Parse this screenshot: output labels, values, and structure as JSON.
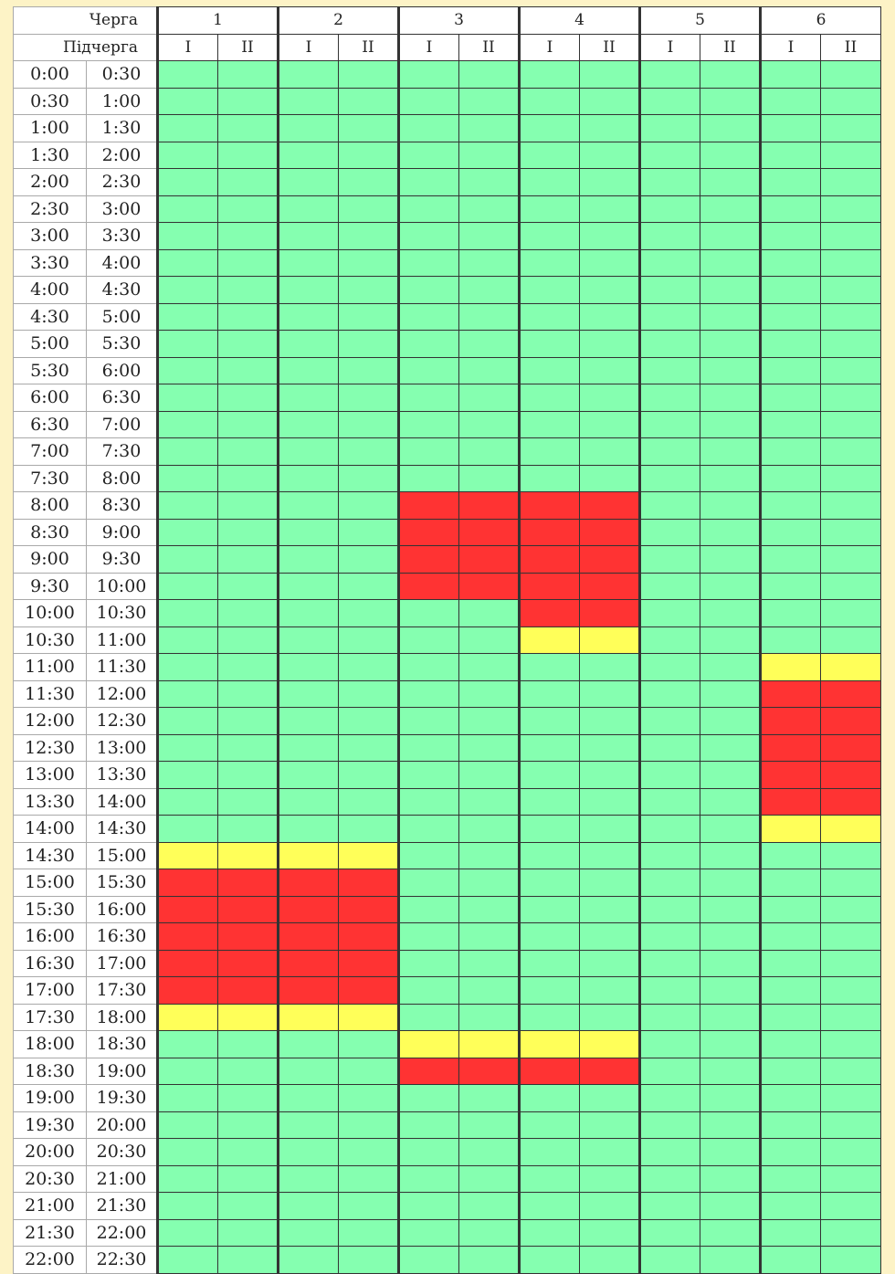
{
  "header": {
    "queue_label": "Черга",
    "subqueue_label": "Підчерга",
    "queues": [
      "1",
      "2",
      "3",
      "4",
      "5",
      "6"
    ],
    "subqueues": [
      "I",
      "II"
    ]
  },
  "legend_colors": {
    "on": "#85ffb0",
    "maybe": "#ffff59",
    "off": "#ff3333"
  },
  "rows": [
    {
      "from": "0:00",
      "to": "0:30",
      "cells": [
        "on",
        "on",
        "on",
        "on",
        "on",
        "on",
        "on",
        "on",
        "on",
        "on",
        "on",
        "on"
      ]
    },
    {
      "from": "0:30",
      "to": "1:00",
      "cells": [
        "on",
        "on",
        "on",
        "on",
        "on",
        "on",
        "on",
        "on",
        "on",
        "on",
        "on",
        "on"
      ]
    },
    {
      "from": "1:00",
      "to": "1:30",
      "cells": [
        "on",
        "on",
        "on",
        "on",
        "on",
        "on",
        "on",
        "on",
        "on",
        "on",
        "on",
        "on"
      ]
    },
    {
      "from": "1:30",
      "to": "2:00",
      "cells": [
        "on",
        "on",
        "on",
        "on",
        "on",
        "on",
        "on",
        "on",
        "on",
        "on",
        "on",
        "on"
      ]
    },
    {
      "from": "2:00",
      "to": "2:30",
      "cells": [
        "on",
        "on",
        "on",
        "on",
        "on",
        "on",
        "on",
        "on",
        "on",
        "on",
        "on",
        "on"
      ]
    },
    {
      "from": "2:30",
      "to": "3:00",
      "cells": [
        "on",
        "on",
        "on",
        "on",
        "on",
        "on",
        "on",
        "on",
        "on",
        "on",
        "on",
        "on"
      ]
    },
    {
      "from": "3:00",
      "to": "3:30",
      "cells": [
        "on",
        "on",
        "on",
        "on",
        "on",
        "on",
        "on",
        "on",
        "on",
        "on",
        "on",
        "on"
      ]
    },
    {
      "from": "3:30",
      "to": "4:00",
      "cells": [
        "on",
        "on",
        "on",
        "on",
        "on",
        "on",
        "on",
        "on",
        "on",
        "on",
        "on",
        "on"
      ]
    },
    {
      "from": "4:00",
      "to": "4:30",
      "cells": [
        "on",
        "on",
        "on",
        "on",
        "on",
        "on",
        "on",
        "on",
        "on",
        "on",
        "on",
        "on"
      ]
    },
    {
      "from": "4:30",
      "to": "5:00",
      "cells": [
        "on",
        "on",
        "on",
        "on",
        "on",
        "on",
        "on",
        "on",
        "on",
        "on",
        "on",
        "on"
      ]
    },
    {
      "from": "5:00",
      "to": "5:30",
      "cells": [
        "on",
        "on",
        "on",
        "on",
        "on",
        "on",
        "on",
        "on",
        "on",
        "on",
        "on",
        "on"
      ]
    },
    {
      "from": "5:30",
      "to": "6:00",
      "cells": [
        "on",
        "on",
        "on",
        "on",
        "on",
        "on",
        "on",
        "on",
        "on",
        "on",
        "on",
        "on"
      ]
    },
    {
      "from": "6:00",
      "to": "6:30",
      "cells": [
        "on",
        "on",
        "on",
        "on",
        "on",
        "on",
        "on",
        "on",
        "on",
        "on",
        "on",
        "on"
      ]
    },
    {
      "from": "6:30",
      "to": "7:00",
      "cells": [
        "on",
        "on",
        "on",
        "on",
        "on",
        "on",
        "on",
        "on",
        "on",
        "on",
        "on",
        "on"
      ]
    },
    {
      "from": "7:00",
      "to": "7:30",
      "cells": [
        "on",
        "on",
        "on",
        "on",
        "on",
        "on",
        "on",
        "on",
        "on",
        "on",
        "on",
        "on"
      ]
    },
    {
      "from": "7:30",
      "to": "8:00",
      "cells": [
        "on",
        "on",
        "on",
        "on",
        "on",
        "on",
        "on",
        "on",
        "on",
        "on",
        "on",
        "on"
      ]
    },
    {
      "from": "8:00",
      "to": "8:30",
      "cells": [
        "on",
        "on",
        "on",
        "on",
        "off",
        "off",
        "off",
        "off",
        "on",
        "on",
        "on",
        "on"
      ]
    },
    {
      "from": "8:30",
      "to": "9:00",
      "cells": [
        "on",
        "on",
        "on",
        "on",
        "off",
        "off",
        "off",
        "off",
        "on",
        "on",
        "on",
        "on"
      ]
    },
    {
      "from": "9:00",
      "to": "9:30",
      "cells": [
        "on",
        "on",
        "on",
        "on",
        "off",
        "off",
        "off",
        "off",
        "on",
        "on",
        "on",
        "on"
      ]
    },
    {
      "from": "9:30",
      "to": "10:00",
      "cells": [
        "on",
        "on",
        "on",
        "on",
        "off",
        "off",
        "off",
        "off",
        "on",
        "on",
        "on",
        "on"
      ]
    },
    {
      "from": "10:00",
      "to": "10:30",
      "cells": [
        "on",
        "on",
        "on",
        "on",
        "on",
        "on",
        "off",
        "off",
        "on",
        "on",
        "on",
        "on"
      ]
    },
    {
      "from": "10:30",
      "to": "11:00",
      "cells": [
        "on",
        "on",
        "on",
        "on",
        "on",
        "on",
        "maybe",
        "maybe",
        "on",
        "on",
        "on",
        "on"
      ]
    },
    {
      "from": "11:00",
      "to": "11:30",
      "cells": [
        "on",
        "on",
        "on",
        "on",
        "on",
        "on",
        "on",
        "on",
        "on",
        "on",
        "maybe",
        "maybe"
      ]
    },
    {
      "from": "11:30",
      "to": "12:00",
      "cells": [
        "on",
        "on",
        "on",
        "on",
        "on",
        "on",
        "on",
        "on",
        "on",
        "on",
        "off",
        "off"
      ]
    },
    {
      "from": "12:00",
      "to": "12:30",
      "cells": [
        "on",
        "on",
        "on",
        "on",
        "on",
        "on",
        "on",
        "on",
        "on",
        "on",
        "off",
        "off"
      ]
    },
    {
      "from": "12:30",
      "to": "13:00",
      "cells": [
        "on",
        "on",
        "on",
        "on",
        "on",
        "on",
        "on",
        "on",
        "on",
        "on",
        "off",
        "off"
      ]
    },
    {
      "from": "13:00",
      "to": "13:30",
      "cells": [
        "on",
        "on",
        "on",
        "on",
        "on",
        "on",
        "on",
        "on",
        "on",
        "on",
        "off",
        "off"
      ]
    },
    {
      "from": "13:30",
      "to": "14:00",
      "cells": [
        "on",
        "on",
        "on",
        "on",
        "on",
        "on",
        "on",
        "on",
        "on",
        "on",
        "off",
        "off"
      ]
    },
    {
      "from": "14:00",
      "to": "14:30",
      "cells": [
        "on",
        "on",
        "on",
        "on",
        "on",
        "on",
        "on",
        "on",
        "on",
        "on",
        "maybe",
        "maybe"
      ]
    },
    {
      "from": "14:30",
      "to": "15:00",
      "cells": [
        "maybe",
        "maybe",
        "maybe",
        "maybe",
        "on",
        "on",
        "on",
        "on",
        "on",
        "on",
        "on",
        "on"
      ]
    },
    {
      "from": "15:00",
      "to": "15:30",
      "cells": [
        "off",
        "off",
        "off",
        "off",
        "on",
        "on",
        "on",
        "on",
        "on",
        "on",
        "on",
        "on"
      ]
    },
    {
      "from": "15:30",
      "to": "16:00",
      "cells": [
        "off",
        "off",
        "off",
        "off",
        "on",
        "on",
        "on",
        "on",
        "on",
        "on",
        "on",
        "on"
      ]
    },
    {
      "from": "16:00",
      "to": "16:30",
      "cells": [
        "off",
        "off",
        "off",
        "off",
        "on",
        "on",
        "on",
        "on",
        "on",
        "on",
        "on",
        "on"
      ]
    },
    {
      "from": "16:30",
      "to": "17:00",
      "cells": [
        "off",
        "off",
        "off",
        "off",
        "on",
        "on",
        "on",
        "on",
        "on",
        "on",
        "on",
        "on"
      ]
    },
    {
      "from": "17:00",
      "to": "17:30",
      "cells": [
        "off",
        "off",
        "off",
        "off",
        "on",
        "on",
        "on",
        "on",
        "on",
        "on",
        "on",
        "on"
      ]
    },
    {
      "from": "17:30",
      "to": "18:00",
      "cells": [
        "maybe",
        "maybe",
        "maybe",
        "maybe",
        "on",
        "on",
        "on",
        "on",
        "on",
        "on",
        "on",
        "on"
      ]
    },
    {
      "from": "18:00",
      "to": "18:30",
      "cells": [
        "on",
        "on",
        "on",
        "on",
        "maybe",
        "maybe",
        "maybe",
        "maybe",
        "on",
        "on",
        "on",
        "on"
      ]
    },
    {
      "from": "18:30",
      "to": "19:00",
      "cells": [
        "on",
        "on",
        "on",
        "on",
        "off",
        "off",
        "off",
        "off",
        "on",
        "on",
        "on",
        "on"
      ]
    },
    {
      "from": "19:00",
      "to": "19:30",
      "cells": [
        "on",
        "on",
        "on",
        "on",
        "on",
        "on",
        "on",
        "on",
        "on",
        "on",
        "on",
        "on"
      ]
    },
    {
      "from": "19:30",
      "to": "20:00",
      "cells": [
        "on",
        "on",
        "on",
        "on",
        "on",
        "on",
        "on",
        "on",
        "on",
        "on",
        "on",
        "on"
      ]
    },
    {
      "from": "20:00",
      "to": "20:30",
      "cells": [
        "on",
        "on",
        "on",
        "on",
        "on",
        "on",
        "on",
        "on",
        "on",
        "on",
        "on",
        "on"
      ]
    },
    {
      "from": "20:30",
      "to": "21:00",
      "cells": [
        "on",
        "on",
        "on",
        "on",
        "on",
        "on",
        "on",
        "on",
        "on",
        "on",
        "on",
        "on"
      ]
    },
    {
      "from": "21:00",
      "to": "21:30",
      "cells": [
        "on",
        "on",
        "on",
        "on",
        "on",
        "on",
        "on",
        "on",
        "on",
        "on",
        "on",
        "on"
      ]
    },
    {
      "from": "21:30",
      "to": "22:00",
      "cells": [
        "on",
        "on",
        "on",
        "on",
        "on",
        "on",
        "on",
        "on",
        "on",
        "on",
        "on",
        "on"
      ]
    },
    {
      "from": "22:00",
      "to": "22:30",
      "cells": [
        "on",
        "on",
        "on",
        "on",
        "on",
        "on",
        "on",
        "on",
        "on",
        "on",
        "on",
        "on"
      ]
    }
  ]
}
